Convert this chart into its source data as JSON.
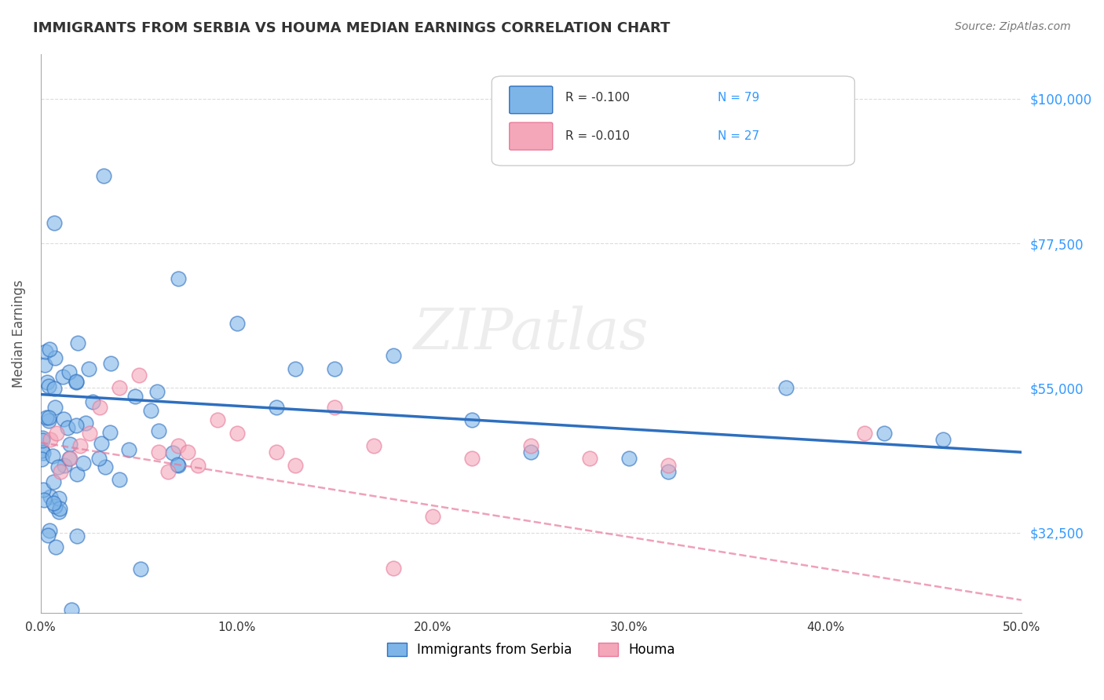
{
  "title": "IMMIGRANTS FROM SERBIA VS HOUMA MEDIAN EARNINGS CORRELATION CHART",
  "source": "Source: ZipAtlas.com",
  "xlabel": "",
  "ylabel": "Median Earnings",
  "xlim": [
    0.0,
    0.5
  ],
  "ylim": [
    20000,
    107000
  ],
  "yticks": [
    32500,
    55000,
    77500,
    100000
  ],
  "ytick_labels": [
    "$32,500",
    "$55,000",
    "$77,500",
    "$100,000"
  ],
  "xticks": [
    0.0,
    0.1,
    0.2,
    0.3,
    0.4,
    0.5
  ],
  "xtick_labels": [
    "0.0%",
    "10.0%",
    "20.0%",
    "30.0%",
    "40.0%",
    "50.0%"
  ],
  "series_blue": {
    "label": "Immigrants from Serbia",
    "R": -0.1,
    "N": 79,
    "color": "#7EB5E8",
    "marker_color": "#7EB5E8",
    "line_color": "#2E6FBF",
    "line_style": "solid"
  },
  "series_pink": {
    "label": "Houma",
    "R": -0.01,
    "N": 27,
    "color": "#F4A7B9",
    "marker_color": "#F4A7B9",
    "line_color": "#E8799A",
    "line_style": "dashed"
  },
  "watermark": "ZIPatlas",
  "background_color": "#FFFFFF",
  "grid_color": "#CCCCCC",
  "title_color": "#333333",
  "axis_label_color": "#555555",
  "ytick_color": "#3399FF",
  "xtick_color": "#333333"
}
